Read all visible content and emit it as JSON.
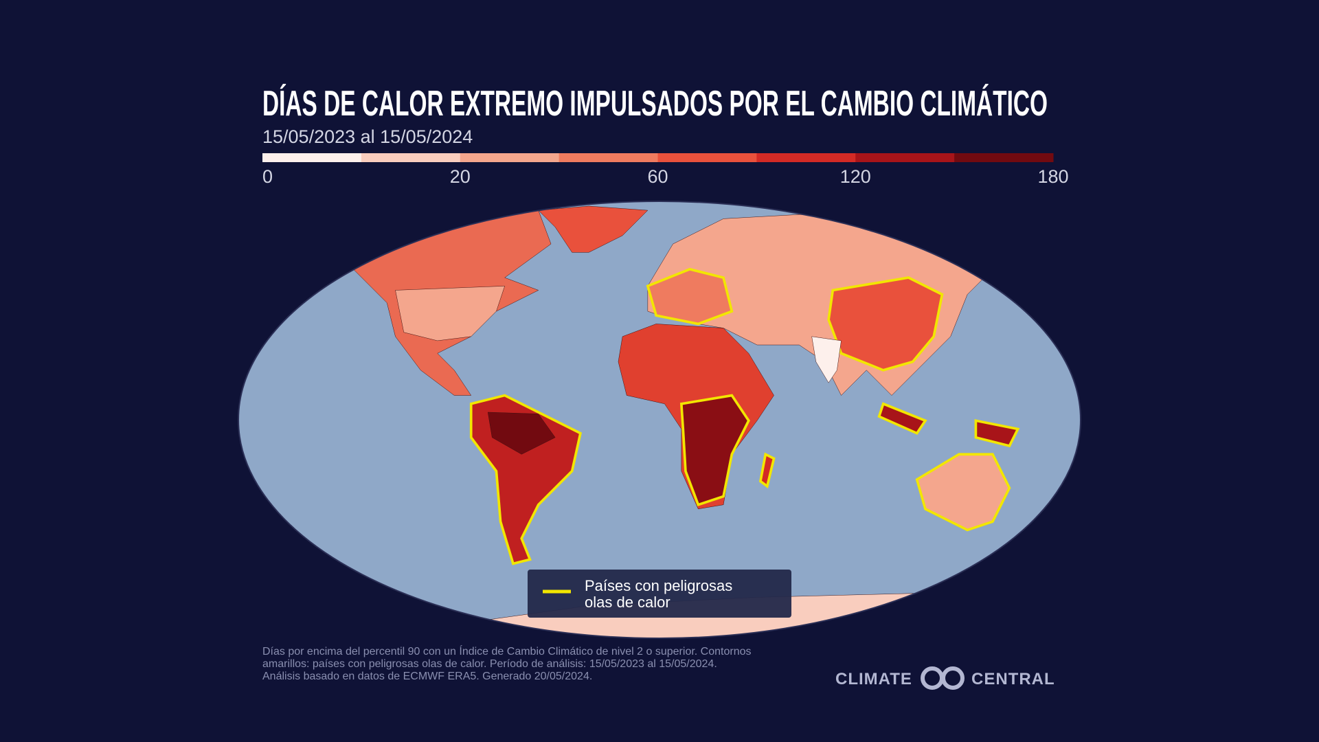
{
  "header": {
    "title": "DÍAS DE CALOR EXTREMO IMPULSADOS POR EL CAMBIO CLIMÁTICO",
    "subtitle": "15/05/2023 al 15/05/2024"
  },
  "colorbar": {
    "colors": [
      "#fdf0ec",
      "#f9cdbe",
      "#f4a68d",
      "#ef7b5f",
      "#e9513c",
      "#d32a25",
      "#a81419",
      "#720a10"
    ],
    "ticks": [
      0,
      20,
      60,
      120,
      180
    ]
  },
  "legend": {
    "color": "#f2e600",
    "lines": [
      "Países con peligrosas",
      "olas de calor"
    ]
  },
  "footnote": {
    "lines": [
      "Días por encima del percentil 90 con un Índice de Cambio Climático de nivel 2 o superior. Contornos",
      "amarillos: países con peligrosas olas de calor. Período de análisis: 15/05/2023 al 15/05/2024.",
      "Análisis basado en datos de ECMWF ERA5. Generado 20/05/2024."
    ]
  },
  "logo": {
    "left": "CLIMATE",
    "right": "CENTRAL"
  }
}
